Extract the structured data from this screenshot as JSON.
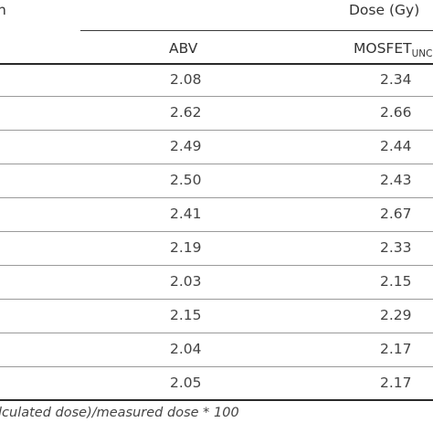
{
  "table": {
    "header": {
      "left_fragment": "n",
      "group_label": "Dose (Gy)",
      "col_abv": "ABV",
      "col_mosfet_main": "MOSFET",
      "col_mosfet_sub": "UNC"
    },
    "rows": [
      {
        "abv": "2.08",
        "mosfet": "2.34"
      },
      {
        "abv": "2.62",
        "mosfet": "2.66"
      },
      {
        "abv": "2.49",
        "mosfet": "2.44"
      },
      {
        "abv": "2.50",
        "mosfet": "2.43"
      },
      {
        "abv": "2.41",
        "mosfet": "2.67"
      },
      {
        "abv": "2.19",
        "mosfet": "2.33"
      },
      {
        "abv": "2.03",
        "mosfet": "2.15"
      },
      {
        "abv": "2.15",
        "mosfet": "2.29"
      },
      {
        "abv": "2.04",
        "mosfet": "2.17"
      },
      {
        "abv": "2.05",
        "mosfet": "2.17"
      }
    ],
    "footnote": "lculated dose)/measured dose * 100"
  }
}
